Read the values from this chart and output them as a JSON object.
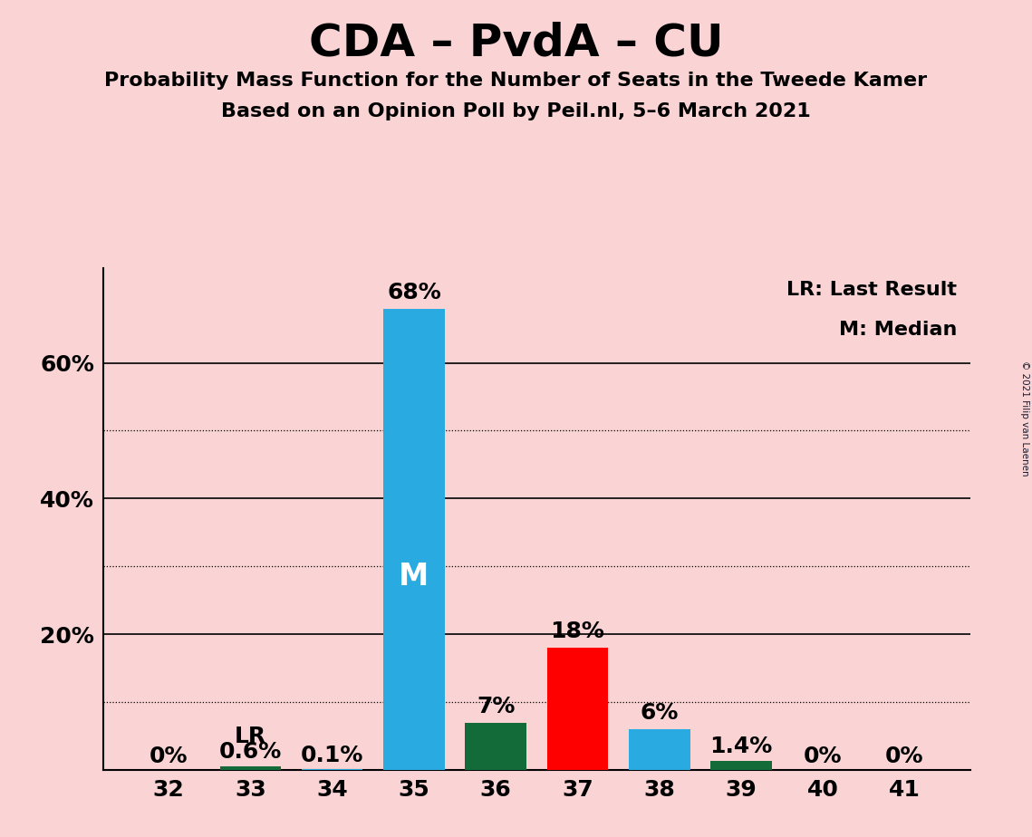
{
  "title": "CDA – PvdA – CU",
  "subtitle1": "Probability Mass Function for the Number of Seats in the Tweede Kamer",
  "subtitle2": "Based on an Opinion Poll by Peil.nl, 5–6 March 2021",
  "copyright": "© 2021 Filip van Laenen",
  "legend_line1": "LR: Last Result",
  "legend_line2": "M: Median",
  "seats": [
    32,
    33,
    34,
    35,
    36,
    37,
    38,
    39,
    40,
    41
  ],
  "values": [
    0.0,
    0.6,
    0.1,
    68.0,
    7.0,
    18.0,
    6.0,
    1.4,
    0.0,
    0.0
  ],
  "labels": [
    "0%",
    "0.6%",
    "0.1%",
    "68%",
    "7%",
    "18%",
    "6%",
    "1.4%",
    "0%",
    "0%"
  ],
  "bar_colors": [
    "#29ABE2",
    "#146B3A",
    "#29ABE2",
    "#29ABE2",
    "#146B3A",
    "#FF0000",
    "#29ABE2",
    "#146B3A",
    "#29ABE2",
    "#29ABE2"
  ],
  "median_seat": 35,
  "lr_seat": 33,
  "background_color": "#FAD4D4",
  "ylim": [
    0,
    74
  ],
  "yticks": [
    0,
    20,
    40,
    60
  ],
  "ytick_labels": [
    "",
    "20%",
    "40%",
    "60%"
  ],
  "solid_grid": [
    20,
    40,
    60
  ],
  "dotted_grid": [
    10,
    30,
    50
  ],
  "title_fontsize": 36,
  "subtitle_fontsize": 16,
  "tick_fontsize": 18,
  "legend_fontsize": 16,
  "median_label_color": "#FFFFFF",
  "median_label_fontsize": 24,
  "bar_label_fontsize": 18,
  "lr_label": "LR",
  "lr_label_fontsize": 18
}
